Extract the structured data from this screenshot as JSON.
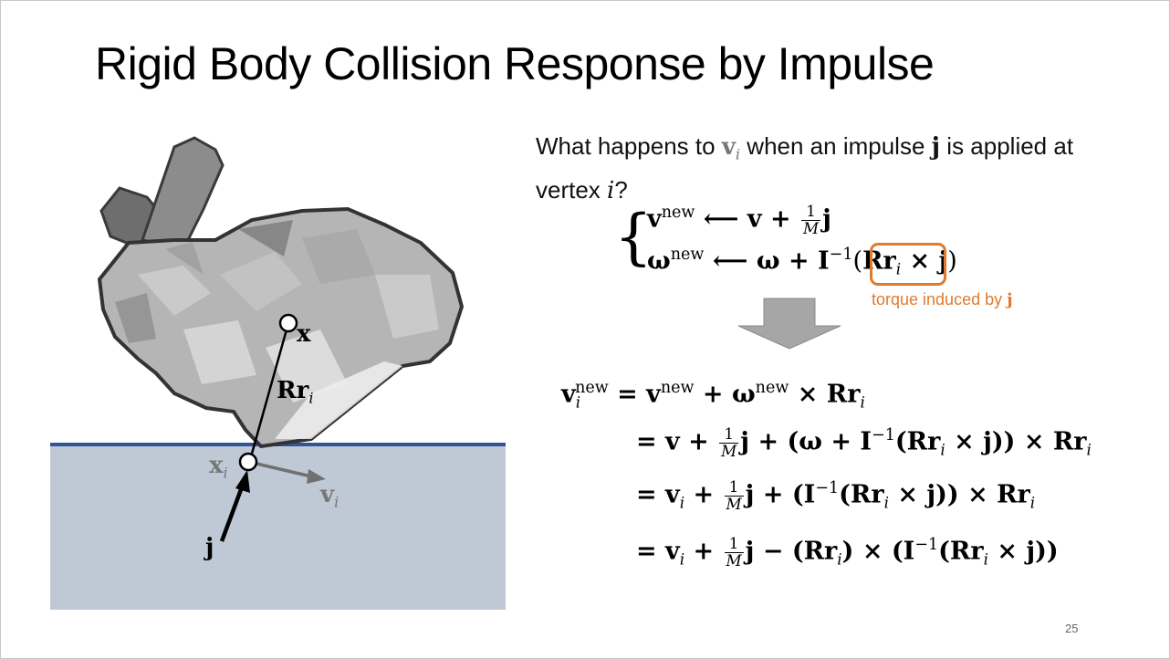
{
  "slide": {
    "title": "Rigid Body Collision Response by Impulse",
    "question": {
      "part1": "What happens to ",
      "v": "v",
      "v_sub": "i",
      "part2": " when an impulse ",
      "j": "j",
      "part3": " is applied at vertex ",
      "vertex": "i",
      "part4": "?"
    },
    "update_rules": {
      "v_lhs": "v",
      "v_sup": "new",
      "v_rhs_pre": " ⟵ v + ",
      "frac_num": "1",
      "frac_den": "M",
      "v_rhs_post": "j",
      "w_lhs": "ω",
      "w_sup": "new",
      "w_rhs_pre": " ⟵ ω + I",
      "w_inv": "−1",
      "w_paren_open": "(",
      "w_R": "Rr",
      "w_i": "i",
      "w_cross": " × j",
      "w_paren_close": ")"
    },
    "torque_label": {
      "text": "torque induced by ",
      "j": "j"
    },
    "derivation": {
      "lhs_v": "v",
      "lhs_sub": "i",
      "lhs_sup": "new",
      "line1": " = v",
      "line1_sup1": "new",
      "line1_b": " + ω",
      "line1_sup2": "new",
      "line1_c": " × Rr",
      "line1_sub": "i",
      "line2_a": "= v + ",
      "line2_b": "j + (ω + I",
      "line2_inv": "−1",
      "line2_c": "(Rr",
      "line2_sub1": "i",
      "line2_d": " × j)) × Rr",
      "line2_sub2": "i",
      "line3_a": "= v",
      "line3_sub0": "i",
      "line3_a2": " + ",
      "line3_b": "j + (I",
      "line3_inv": "−1",
      "line3_c": "(Rr",
      "line3_sub1": "i",
      "line3_d": " × j)) × Rr",
      "line3_sub2": "i",
      "line4_a": "= v",
      "line4_sub0": "i",
      "line4_a2": " + ",
      "line4_b": "j − (Rr",
      "line4_sub1": "i",
      "line4_c": ") × (I",
      "line4_inv": "−1",
      "line4_d": "(Rr",
      "line4_sub2": "i",
      "line4_e": " × j))",
      "frac_num": "1",
      "frac_den": "M"
    },
    "figure_labels": {
      "x": "x",
      "rr": "Rr",
      "rr_sub": "i",
      "xi": "x",
      "xi_sub": "i",
      "vi": "v",
      "vi_sub": "i",
      "j": "j"
    },
    "page_number": "25",
    "colors": {
      "ground_fill": "#bfc9d6",
      "ground_line": "#2f5597",
      "accent_orange": "#e07a2f",
      "arrow_gray": "#a6a6a6",
      "bunny_gray": "#9a9a9a"
    },
    "icons": {
      "down_arrow": "down-arrow-icon"
    }
  }
}
